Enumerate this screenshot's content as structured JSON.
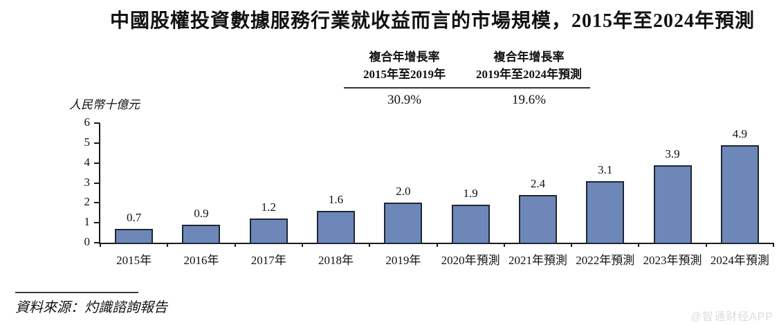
{
  "title": "中國股權投資數據服務行業就收益而言的市場規模，2015年至2024年預測",
  "unit_label": "人民幣十億元",
  "cagr": {
    "columns": [
      {
        "line1": "複合年增長率",
        "line2": "2015年至2019年",
        "value": "30.9%"
      },
      {
        "line1": "複合年增長率",
        "line2": "2019年至2024年預測",
        "value": "19.6%"
      }
    ]
  },
  "chart_data": {
    "type": "bar",
    "title": "中國股權投資數據服務行業就收益而言的市場規模，2015年至2024年預測",
    "ylabel": "人民幣十億元",
    "categories": [
      "2015年",
      "2016年",
      "2017年",
      "2018年",
      "2019年",
      "2020年預測",
      "2021年預測",
      "2022年預測",
      "2023年預測",
      "2024年預測"
    ],
    "values": [
      0.7,
      0.9,
      1.2,
      1.6,
      2.0,
      1.9,
      2.4,
      3.1,
      3.9,
      4.9
    ],
    "value_labels": [
      "0.7",
      "0.9",
      "1.2",
      "1.6",
      "2.0",
      "1.9",
      "2.4",
      "3.1",
      "3.9",
      "4.9"
    ],
    "ylim": [
      0,
      6
    ],
    "yticks": [
      0,
      1,
      2,
      3,
      4,
      5,
      6
    ],
    "grid": false,
    "legend": false,
    "bar_color": "#6d87b8",
    "bar_border_color": "#1f2633"
  },
  "source": "資料來源：灼識諮詢報告",
  "watermark": "@智通财经APP"
}
